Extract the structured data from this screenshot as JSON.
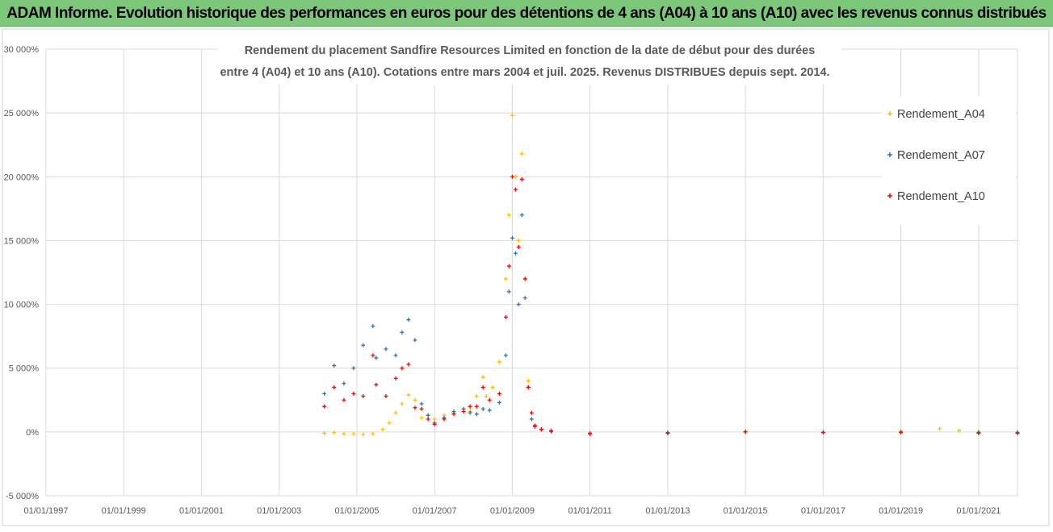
{
  "banner": {
    "title": "ADAM Informe. Evolution historique des performances en euros pour des détentions de 4 ans (A04) à 10 ans (A10) avec les revenus connus distribués",
    "bg_color": "#7dc77a"
  },
  "chart_data": {
    "type": "scatter",
    "title_lines": [
      "Rendement du placement Sandfire Resources Limited en fonction de la date de début pour des durées",
      "entre 4 (A04) et 10 ans (A10). Cotations entre mars 2004 et juil. 2025. Revenus DISTRIBUES depuis sept. 2014."
    ],
    "xlabel": "",
    "ylabel": "",
    "x_range": [
      "1997-01-01",
      "2022-01-01"
    ],
    "x_ticks": [
      "01/01/1997",
      "01/01/1999",
      "01/01/2001",
      "01/01/2003",
      "01/01/2005",
      "01/01/2007",
      "01/01/2009",
      "01/01/2011",
      "01/01/2013",
      "01/01/2015",
      "01/01/2017",
      "01/01/2019",
      "01/01/2021"
    ],
    "y_range": [
      -5000,
      30000
    ],
    "y_ticks": [
      -5000,
      0,
      5000,
      10000,
      15000,
      20000,
      25000,
      30000
    ],
    "y_tick_labels": [
      "-5 000%",
      "0%",
      "5 000%",
      "10 000%",
      "15 000%",
      "20 000%",
      "25 000%",
      "30 000%"
    ],
    "grid": true,
    "legend_position": "top-right",
    "marker": "+",
    "series": [
      {
        "name": "Rendement_A04",
        "color": "#ffc000",
        "points": [
          [
            "2004-03-01",
            -100
          ],
          [
            "2004-06-01",
            -50
          ],
          [
            "2004-09-01",
            -150
          ],
          [
            "2004-12-01",
            -150
          ],
          [
            "2005-03-01",
            -200
          ],
          [
            "2005-06-01",
            -150
          ],
          [
            "2005-09-01",
            200
          ],
          [
            "2005-11-01",
            700
          ],
          [
            "2006-01-01",
            1500
          ],
          [
            "2006-03-01",
            2200
          ],
          [
            "2006-05-01",
            2900
          ],
          [
            "2006-07-01",
            2500
          ],
          [
            "2006-09-01",
            1100
          ],
          [
            "2006-11-01",
            1300
          ],
          [
            "2007-01-01",
            1000
          ],
          [
            "2007-04-01",
            1300
          ],
          [
            "2007-07-01",
            1500
          ],
          [
            "2007-10-01",
            1800
          ],
          [
            "2007-12-01",
            1600
          ],
          [
            "2008-02-01",
            2800
          ],
          [
            "2008-04-01",
            4300
          ],
          [
            "2008-05-01",
            2800
          ],
          [
            "2008-07-01",
            3500
          ],
          [
            "2008-09-01",
            5500
          ],
          [
            "2008-11-01",
            12000
          ],
          [
            "2008-12-01",
            17000
          ],
          [
            "2009-01-01",
            24800
          ],
          [
            "2009-02-01",
            20000
          ],
          [
            "2009-03-01",
            15000
          ],
          [
            "2009-04-01",
            21800
          ],
          [
            "2009-05-01",
            12000
          ],
          [
            "2009-06-01",
            4000
          ],
          [
            "2009-07-01",
            1000
          ],
          [
            "2009-08-01",
            500
          ],
          [
            "2009-10-01",
            200
          ],
          [
            "2010-01-01",
            100
          ],
          [
            "2011-01-01",
            -100
          ],
          [
            "2013-01-01",
            -50
          ],
          [
            "2015-01-01",
            50
          ],
          [
            "2017-01-01",
            -30
          ],
          [
            "2019-01-01",
            50
          ],
          [
            "2020-01-01",
            250
          ],
          [
            "2020-07-01",
            100
          ],
          [
            "2021-01-01",
            50
          ],
          [
            "2022-01-01",
            0
          ]
        ]
      },
      {
        "name": "Rendement_A07",
        "color": "#2e75b6",
        "points": [
          [
            "2004-03-01",
            3000
          ],
          [
            "2004-06-01",
            5200
          ],
          [
            "2004-09-01",
            3800
          ],
          [
            "2004-12-01",
            5000
          ],
          [
            "2005-03-01",
            6800
          ],
          [
            "2005-06-01",
            8300
          ],
          [
            "2005-07-01",
            5800
          ],
          [
            "2005-10-01",
            6500
          ],
          [
            "2006-01-01",
            6000
          ],
          [
            "2006-03-01",
            7800
          ],
          [
            "2006-05-01",
            8800
          ],
          [
            "2006-07-01",
            7200
          ],
          [
            "2006-09-01",
            2200
          ],
          [
            "2006-11-01",
            1300
          ],
          [
            "2007-01-01",
            700
          ],
          [
            "2007-04-01",
            1100
          ],
          [
            "2007-07-01",
            1600
          ],
          [
            "2007-10-01",
            1800
          ],
          [
            "2007-12-01",
            1500
          ],
          [
            "2008-02-01",
            1400
          ],
          [
            "2008-04-01",
            1800
          ],
          [
            "2008-06-01",
            1700
          ],
          [
            "2008-09-01",
            2300
          ],
          [
            "2008-11-01",
            6000
          ],
          [
            "2008-12-01",
            11000
          ],
          [
            "2009-01-01",
            15200
          ],
          [
            "2009-02-01",
            14000
          ],
          [
            "2009-03-01",
            10000
          ],
          [
            "2009-04-01",
            17000
          ],
          [
            "2009-05-01",
            10500
          ],
          [
            "2009-06-01",
            3500
          ],
          [
            "2009-07-01",
            1000
          ],
          [
            "2009-08-01",
            400
          ],
          [
            "2009-10-01",
            200
          ],
          [
            "2010-01-01",
            100
          ],
          [
            "2011-01-01",
            -100
          ],
          [
            "2013-01-01",
            -50
          ],
          [
            "2015-01-01",
            0
          ],
          [
            "2017-01-01",
            -30
          ],
          [
            "2019-01-01",
            0
          ],
          [
            "2021-01-01",
            -50
          ],
          [
            "2022-01-01",
            -50
          ]
        ]
      },
      {
        "name": "Rendement_A10",
        "color": "#ff0000",
        "points": [
          [
            "2004-03-01",
            2000
          ],
          [
            "2004-06-01",
            3500
          ],
          [
            "2004-09-01",
            2500
          ],
          [
            "2004-12-01",
            3000
          ],
          [
            "2005-03-01",
            2800
          ],
          [
            "2005-06-01",
            6000
          ],
          [
            "2005-07-01",
            3700
          ],
          [
            "2005-10-01",
            2800
          ],
          [
            "2006-01-01",
            4200
          ],
          [
            "2006-03-01",
            5000
          ],
          [
            "2006-05-01",
            5300
          ],
          [
            "2006-07-01",
            1900
          ],
          [
            "2006-09-01",
            1800
          ],
          [
            "2006-11-01",
            1000
          ],
          [
            "2007-01-01",
            600
          ],
          [
            "2007-04-01",
            1000
          ],
          [
            "2007-07-01",
            1400
          ],
          [
            "2007-10-01",
            1600
          ],
          [
            "2007-12-01",
            2000
          ],
          [
            "2008-02-01",
            2000
          ],
          [
            "2008-04-01",
            3500
          ],
          [
            "2008-06-01",
            2500
          ],
          [
            "2008-09-01",
            3000
          ],
          [
            "2008-11-01",
            9000
          ],
          [
            "2008-12-01",
            13000
          ],
          [
            "2009-01-01",
            20000
          ],
          [
            "2009-02-01",
            19000
          ],
          [
            "2009-03-01",
            14500
          ],
          [
            "2009-04-01",
            19800
          ],
          [
            "2009-05-01",
            12000
          ],
          [
            "2009-06-01",
            3500
          ],
          [
            "2009-07-01",
            1500
          ],
          [
            "2009-08-01",
            500
          ],
          [
            "2009-10-01",
            200
          ],
          [
            "2010-01-01",
            50
          ],
          [
            "2011-01-01",
            -150
          ],
          [
            "2013-01-01",
            -100
          ],
          [
            "2015-01-01",
            0
          ],
          [
            "2017-01-01",
            -50
          ],
          [
            "2019-01-01",
            -50
          ],
          [
            "2021-01-01",
            -100
          ],
          [
            "2022-01-01",
            -100
          ]
        ]
      }
    ]
  }
}
